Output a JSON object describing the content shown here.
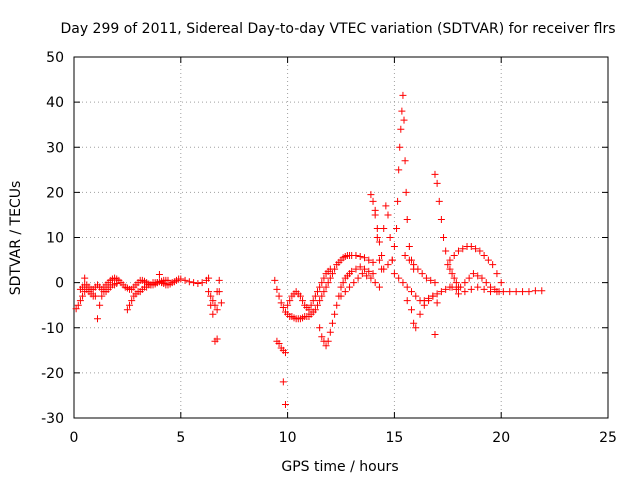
{
  "chart_data": {
    "type": "scatter",
    "title": "Day 299 of 2011, Sidereal Day-to-day VTEC variation (SDTVAR) for receiver flrs",
    "xlabel": "GPS time / hours",
    "ylabel": "SDTVAR / TECUs",
    "xlim": [
      0,
      25
    ],
    "ylim": [
      -30,
      50
    ],
    "xticks": [
      0,
      5,
      10,
      15,
      20,
      25
    ],
    "yticks": [
      -30,
      -20,
      -10,
      0,
      10,
      20,
      30,
      40,
      50
    ],
    "grid": true,
    "legend": "none",
    "marker": "+",
    "color": "#ff0000",
    "points": [
      [
        0.1,
        -5.8
      ],
      [
        0.2,
        -5.0
      ],
      [
        0.3,
        -4.0
      ],
      [
        0.4,
        -3.0
      ],
      [
        0.5,
        -2.0
      ],
      [
        0.5,
        1.0
      ],
      [
        0.6,
        -1.5
      ],
      [
        0.7,
        -2.0
      ],
      [
        0.8,
        -2.5
      ],
      [
        0.9,
        -3.0
      ],
      [
        1.0,
        -3.0
      ],
      [
        1.1,
        -8.0
      ],
      [
        1.2,
        -5.0
      ],
      [
        1.3,
        -3.0
      ],
      [
        1.4,
        -1.0
      ],
      [
        1.5,
        -0.5
      ],
      [
        1.6,
        0.0
      ],
      [
        1.7,
        0.5
      ],
      [
        1.8,
        0.8
      ],
      [
        1.9,
        1.0
      ],
      [
        2.0,
        0.8
      ],
      [
        2.1,
        0.5
      ],
      [
        2.2,
        0.0
      ],
      [
        2.3,
        -0.5
      ],
      [
        2.4,
        -1.0
      ],
      [
        2.5,
        -1.2
      ],
      [
        2.6,
        -1.5
      ],
      [
        2.7,
        -1.5
      ],
      [
        2.8,
        -1.0
      ],
      [
        2.9,
        -0.5
      ],
      [
        3.0,
        0.0
      ],
      [
        3.1,
        0.5
      ],
      [
        3.2,
        0.5
      ],
      [
        3.3,
        0.3
      ],
      [
        3.4,
        0.0
      ],
      [
        3.5,
        -0.3
      ],
      [
        3.6,
        -0.5
      ],
      [
        3.7,
        -0.5
      ],
      [
        3.8,
        -0.3
      ],
      [
        3.9,
        0.0
      ],
      [
        4.0,
        1.8
      ],
      [
        4.1,
        0.0
      ],
      [
        4.2,
        -0.2
      ],
      [
        4.3,
        -0.5
      ],
      [
        4.4,
        -0.5
      ],
      [
        4.5,
        -0.3
      ],
      [
        4.6,
        0.0
      ],
      [
        4.7,
        0.2
      ],
      [
        4.8,
        0.5
      ],
      [
        4.9,
        0.8
      ],
      [
        5.0,
        0.8
      ],
      [
        5.2,
        0.5
      ],
      [
        5.4,
        0.2
      ],
      [
        5.6,
        0.0
      ],
      [
        5.8,
        -0.2
      ],
      [
        6.0,
        0.0
      ],
      [
        6.2,
        0.5
      ],
      [
        6.3,
        1.0
      ],
      [
        6.4,
        -5.0
      ],
      [
        6.5,
        -7.0
      ],
      [
        6.6,
        -13.0
      ],
      [
        6.7,
        -2.0
      ],
      [
        6.8,
        0.5
      ],
      [
        6.9,
        -4.5
      ],
      [
        2.5,
        -6.0
      ],
      [
        2.6,
        -5.0
      ],
      [
        2.7,
        -4.0
      ],
      [
        2.8,
        -3.0
      ],
      [
        2.9,
        -2.5
      ],
      [
        3.0,
        -2.0
      ],
      [
        3.1,
        -2.0
      ],
      [
        3.2,
        -1.5
      ],
      [
        3.3,
        -1.0
      ],
      [
        3.4,
        -1.0
      ],
      [
        3.5,
        -0.5
      ],
      [
        3.6,
        -0.5
      ],
      [
        3.7,
        0.0
      ],
      [
        3.8,
        0.0
      ],
      [
        3.9,
        0.0
      ],
      [
        4.0,
        0.2
      ],
      [
        4.1,
        0.3
      ],
      [
        4.2,
        0.5
      ],
      [
        4.3,
        0.5
      ],
      [
        4.4,
        0.5
      ],
      [
        0.3,
        -1.5
      ],
      [
        0.4,
        -1.0
      ],
      [
        0.5,
        -0.5
      ],
      [
        0.6,
        -0.5
      ],
      [
        0.7,
        -1.0
      ],
      [
        0.8,
        -1.5
      ],
      [
        0.9,
        -1.5
      ],
      [
        1.0,
        -1.0
      ],
      [
        1.1,
        -0.5
      ],
      [
        1.2,
        -1.0
      ],
      [
        1.3,
        -1.5
      ],
      [
        1.4,
        -2.0
      ],
      [
        1.5,
        -2.0
      ],
      [
        1.6,
        -1.5
      ],
      [
        1.7,
        -1.0
      ],
      [
        1.8,
        -0.5
      ],
      [
        1.9,
        -0.5
      ],
      [
        2.0,
        -0.2
      ],
      [
        6.3,
        -2.0
      ],
      [
        6.4,
        -3.0
      ],
      [
        6.5,
        -4.0
      ],
      [
        6.6,
        -5.0
      ],
      [
        6.7,
        -6.0
      ],
      [
        6.8,
        -2.0
      ],
      [
        6.7,
        -12.5
      ],
      [
        9.5,
        -13.0
      ],
      [
        9.6,
        -13.5
      ],
      [
        9.7,
        -14.5
      ],
      [
        9.8,
        -15.0
      ],
      [
        9.9,
        -15.5
      ],
      [
        9.8,
        -22.0
      ],
      [
        9.9,
        -27.0
      ],
      [
        9.4,
        0.5
      ],
      [
        9.5,
        -1.5
      ],
      [
        9.6,
        -3.0
      ],
      [
        9.7,
        -4.5
      ],
      [
        9.8,
        -5.5
      ],
      [
        9.9,
        -6.5
      ],
      [
        10.0,
        -7.0
      ],
      [
        10.1,
        -7.5
      ],
      [
        10.2,
        -7.5
      ],
      [
        10.3,
        -7.8
      ],
      [
        10.4,
        -8.0
      ],
      [
        10.5,
        -8.0
      ],
      [
        10.6,
        -8.0
      ],
      [
        10.7,
        -7.8
      ],
      [
        10.8,
        -7.5
      ],
      [
        10.9,
        -7.5
      ],
      [
        11.0,
        -7.5
      ],
      [
        11.1,
        -7.0
      ],
      [
        11.2,
        -6.5
      ],
      [
        11.3,
        -6.0
      ],
      [
        11.4,
        -5.0
      ],
      [
        11.5,
        -4.0
      ],
      [
        11.6,
        -3.0
      ],
      [
        11.7,
        -2.0
      ],
      [
        11.8,
        -1.0
      ],
      [
        11.9,
        0.0
      ],
      [
        12.0,
        1.0
      ],
      [
        12.1,
        2.0
      ],
      [
        12.2,
        3.0
      ],
      [
        12.3,
        4.0
      ],
      [
        12.4,
        4.5
      ],
      [
        12.5,
        5.0
      ],
      [
        12.6,
        5.5
      ],
      [
        12.7,
        5.8
      ],
      [
        12.8,
        6.0
      ],
      [
        12.9,
        6.0
      ],
      [
        13.0,
        6.0
      ],
      [
        13.2,
        6.0
      ],
      [
        13.4,
        5.8
      ],
      [
        13.6,
        5.5
      ],
      [
        13.8,
        5.0
      ],
      [
        14.0,
        4.5
      ],
      [
        10.0,
        -5.0
      ],
      [
        10.1,
        -4.0
      ],
      [
        10.2,
        -3.0
      ],
      [
        10.3,
        -2.5
      ],
      [
        10.4,
        -2.0
      ],
      [
        10.5,
        -2.5
      ],
      [
        10.6,
        -3.0
      ],
      [
        10.7,
        -4.0
      ],
      [
        10.8,
        -5.0
      ],
      [
        10.9,
        -5.5
      ],
      [
        11.0,
        -6.0
      ],
      [
        11.1,
        -5.0
      ],
      [
        11.2,
        -4.0
      ],
      [
        11.3,
        -3.0
      ],
      [
        11.4,
        -2.0
      ],
      [
        11.5,
        -1.0
      ],
      [
        11.6,
        0.0
      ],
      [
        11.7,
        1.0
      ],
      [
        11.8,
        2.0
      ],
      [
        11.9,
        2.5
      ],
      [
        12.0,
        3.0
      ],
      [
        11.5,
        -10.0
      ],
      [
        11.6,
        -12.0
      ],
      [
        11.7,
        -13.0
      ],
      [
        11.8,
        -14.0
      ],
      [
        11.9,
        -13.0
      ],
      [
        12.0,
        -11.0
      ],
      [
        12.1,
        -9.0
      ],
      [
        12.2,
        -7.0
      ],
      [
        12.3,
        -5.0
      ],
      [
        12.4,
        -3.0
      ],
      [
        12.5,
        -1.0
      ],
      [
        12.6,
        0.0
      ],
      [
        12.7,
        1.0
      ],
      [
        12.8,
        1.5
      ],
      [
        12.9,
        2.0
      ],
      [
        13.0,
        2.5
      ],
      [
        13.2,
        3.0
      ],
      [
        13.4,
        3.5
      ],
      [
        13.6,
        3.0
      ],
      [
        13.8,
        2.5
      ],
      [
        14.0,
        2.0
      ],
      [
        12.5,
        -3.0
      ],
      [
        12.7,
        -2.0
      ],
      [
        12.9,
        -1.0
      ],
      [
        13.1,
        0.0
      ],
      [
        13.3,
        1.0
      ],
      [
        13.5,
        2.0
      ],
      [
        13.7,
        1.5
      ],
      [
        13.9,
        1.0
      ],
      [
        14.1,
        0.0
      ],
      [
        14.3,
        -1.0
      ],
      [
        13.9,
        19.5
      ],
      [
        14.0,
        18.0
      ],
      [
        14.1,
        15.0
      ],
      [
        14.2,
        10.0
      ],
      [
        14.3,
        5.0
      ],
      [
        14.4,
        3.0
      ],
      [
        14.5,
        12.0
      ],
      [
        14.6,
        17.0
      ],
      [
        14.7,
        15.0
      ],
      [
        14.8,
        10.0
      ],
      [
        14.9,
        5.0
      ],
      [
        14.4,
        6.0
      ],
      [
        14.3,
        9.0
      ],
      [
        14.2,
        12.0
      ],
      [
        14.1,
        16.0
      ],
      [
        14.5,
        3.0
      ],
      [
        14.7,
        4.0
      ],
      [
        14.9,
        5.0
      ],
      [
        15.0,
        8.0
      ],
      [
        15.1,
        12.0
      ],
      [
        15.15,
        18.0
      ],
      [
        15.2,
        25.0
      ],
      [
        15.25,
        30.0
      ],
      [
        15.3,
        34.0
      ],
      [
        15.35,
        38.0
      ],
      [
        15.4,
        41.5
      ],
      [
        15.45,
        36.0
      ],
      [
        15.5,
        27.0
      ],
      [
        15.55,
        20.0
      ],
      [
        15.6,
        14.0
      ],
      [
        15.7,
        8.0
      ],
      [
        15.8,
        5.0
      ],
      [
        15.9,
        3.0
      ],
      [
        15.6,
        -4.0
      ],
      [
        15.8,
        -6.0
      ],
      [
        15.9,
        -9.0
      ],
      [
        16.0,
        -10.0
      ],
      [
        16.2,
        -7.0
      ],
      [
        16.4,
        -5.0
      ],
      [
        16.6,
        -4.0
      ],
      [
        16.8,
        -3.0
      ],
      [
        16.9,
        -11.5
      ],
      [
        17.0,
        -4.5
      ],
      [
        15.0,
        2.0
      ],
      [
        15.2,
        1.0
      ],
      [
        15.4,
        0.0
      ],
      [
        15.6,
        -1.0
      ],
      [
        15.8,
        -2.0
      ],
      [
        16.0,
        -3.0
      ],
      [
        16.2,
        -4.0
      ],
      [
        16.4,
        -4.0
      ],
      [
        16.6,
        -3.5
      ],
      [
        16.8,
        -3.0
      ],
      [
        17.0,
        -2.5
      ],
      [
        17.2,
        -2.0
      ],
      [
        17.4,
        -1.5
      ],
      [
        17.6,
        -1.0
      ],
      [
        15.5,
        6.0
      ],
      [
        15.7,
        5.0
      ],
      [
        15.9,
        4.0
      ],
      [
        16.1,
        3.0
      ],
      [
        16.3,
        2.0
      ],
      [
        16.5,
        1.0
      ],
      [
        16.7,
        0.5
      ],
      [
        16.9,
        0.0
      ],
      [
        16.9,
        24.0
      ],
      [
        17.0,
        22.0
      ],
      [
        17.1,
        18.0
      ],
      [
        17.2,
        14.0
      ],
      [
        17.3,
        10.0
      ],
      [
        17.4,
        7.0
      ],
      [
        17.5,
        4.0
      ],
      [
        17.6,
        3.0
      ],
      [
        17.7,
        2.0
      ],
      [
        17.8,
        1.0
      ],
      [
        17.9,
        0.0
      ],
      [
        18.0,
        -1.0
      ],
      [
        17.6,
        5.0
      ],
      [
        17.8,
        6.0
      ],
      [
        18.0,
        7.0
      ],
      [
        18.2,
        7.5
      ],
      [
        18.4,
        8.0
      ],
      [
        18.6,
        8.0
      ],
      [
        18.8,
        7.5
      ],
      [
        19.0,
        7.0
      ],
      [
        19.2,
        6.0
      ],
      [
        19.4,
        5.0
      ],
      [
        19.6,
        4.0
      ],
      [
        19.8,
        2.0
      ],
      [
        20.0,
        0.0
      ],
      [
        17.7,
        -1.0
      ],
      [
        17.9,
        -1.5
      ],
      [
        18.1,
        -1.0
      ],
      [
        18.3,
        0.0
      ],
      [
        18.5,
        1.0
      ],
      [
        18.7,
        2.0
      ],
      [
        18.9,
        1.5
      ],
      [
        19.1,
        1.0
      ],
      [
        19.3,
        0.0
      ],
      [
        19.5,
        -1.0
      ],
      [
        19.7,
        -1.5
      ],
      [
        19.9,
        -2.0
      ],
      [
        18.0,
        -2.5
      ],
      [
        18.3,
        -2.0
      ],
      [
        18.6,
        -1.5
      ],
      [
        18.9,
        -1.0
      ],
      [
        19.2,
        -1.5
      ],
      [
        19.5,
        -2.0
      ],
      [
        19.8,
        -2.0
      ],
      [
        20.1,
        -2.0
      ],
      [
        20.4,
        -2.0
      ],
      [
        20.7,
        -2.0
      ],
      [
        21.0,
        -2.0
      ],
      [
        21.3,
        -2.0
      ],
      [
        21.6,
        -1.8
      ],
      [
        21.9,
        -1.8
      ]
    ]
  }
}
